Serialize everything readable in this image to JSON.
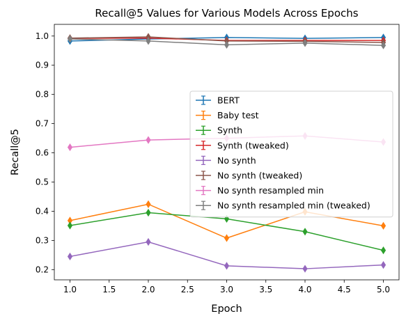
{
  "chart_data": {
    "type": "line",
    "title": "Recall@5 Values for Various Models Across Epochs",
    "xlabel": "Epoch",
    "ylabel": "Recall@5",
    "xlim": [
      0.8,
      5.2
    ],
    "ylim": [
      0.165,
      1.04
    ],
    "x": [
      1,
      2,
      3,
      4,
      5
    ],
    "xticks": [
      1.0,
      1.5,
      2.0,
      2.5,
      3.0,
      3.5,
      4.0,
      4.5,
      5.0
    ],
    "xtick_labels": [
      "1.0",
      "1.5",
      "2.0",
      "2.5",
      "3.0",
      "3.5",
      "4.0",
      "4.5",
      "5.0"
    ],
    "yticks": [
      0.2,
      0.3,
      0.4,
      0.5,
      0.6,
      0.7,
      0.8,
      0.9,
      1.0
    ],
    "ytick_labels": [
      "0.2",
      "0.3",
      "0.4",
      "0.5",
      "0.6",
      "0.7",
      "0.8",
      "0.9",
      "1.0"
    ],
    "grid": false,
    "legend_position": "center-right",
    "marker": "thin-diamond",
    "series": [
      {
        "name": "BERT",
        "color": "#1f77b4",
        "values": [
          0.983,
          0.99,
          0.995,
          0.992,
          0.995
        ]
      },
      {
        "name": "Baby test",
        "color": "#ff7f0e",
        "values": [
          0.368,
          0.424,
          0.308,
          0.398,
          0.35
        ]
      },
      {
        "name": "Synth",
        "color": "#2ca02c",
        "values": [
          0.351,
          0.395,
          0.374,
          0.33,
          0.266
        ]
      },
      {
        "name": "Synth (tweaked)",
        "color": "#d62728",
        "values": [
          0.992,
          0.993,
          0.985,
          0.985,
          0.985
        ]
      },
      {
        "name": "No synth",
        "color": "#9467bd",
        "values": [
          0.245,
          0.295,
          0.213,
          0.203,
          0.216
        ]
      },
      {
        "name": "No synth (tweaked)",
        "color": "#8c564b",
        "values": [
          0.993,
          0.997,
          0.983,
          0.982,
          0.978
        ]
      },
      {
        "name": "No synth resampled min",
        "color": "#e377c2",
        "values": [
          0.619,
          0.644,
          0.65,
          0.658,
          0.637
        ]
      },
      {
        "name": "No synth resampled min (tweaked)",
        "color": "#7f7f7f",
        "values": [
          0.99,
          0.983,
          0.97,
          0.976,
          0.968
        ]
      }
    ]
  }
}
